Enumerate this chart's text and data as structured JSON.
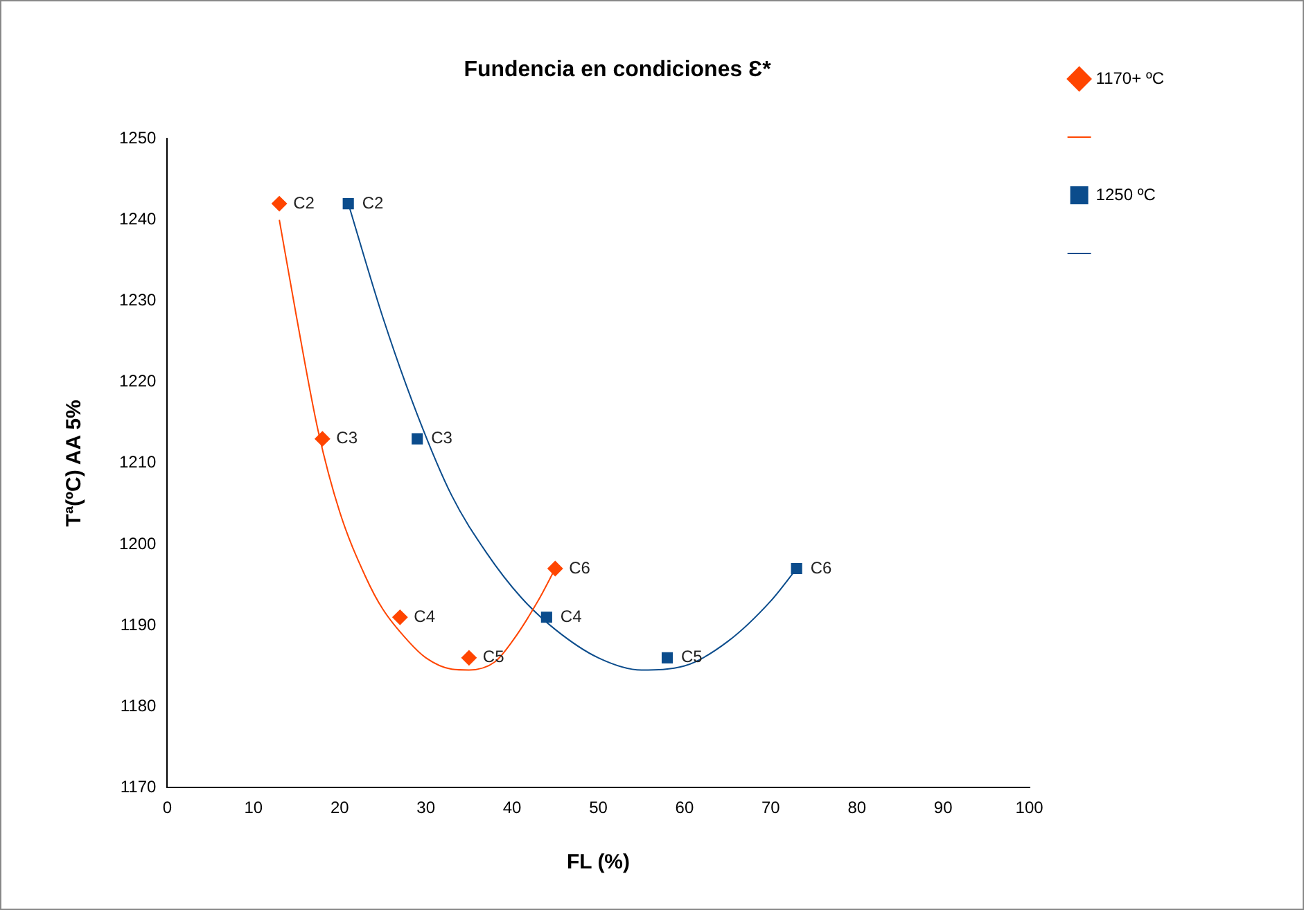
{
  "chart_data": {
    "type": "scatter",
    "title": "Fundencia en condiciones Ɛ*",
    "xlabel": "FL (%)",
    "ylabel": "Tª(ºC) AA 5%",
    "xlim": [
      0,
      100
    ],
    "xticks": [
      0,
      10,
      20,
      30,
      40,
      50,
      60,
      70,
      80,
      90,
      100
    ],
    "ylim": [
      1170,
      1250
    ],
    "yticks": [
      1170,
      1180,
      1190,
      1200,
      1210,
      1220,
      1230,
      1240,
      1250
    ],
    "grid": false,
    "legend": "right",
    "series": [
      {
        "name": "1170+ ºC",
        "color": "#ff4500",
        "marker": "diamond",
        "x": [
          13,
          18,
          27,
          35,
          45
        ],
        "values": [
          1242,
          1213,
          1191,
          1186,
          1197
        ]
      },
      {
        "type": "line",
        "color": "#ff4500",
        "marker": "none",
        "x": [
          13,
          15,
          17.5,
          20,
          23,
          25,
          28,
          30,
          33,
          35,
          38,
          40,
          43,
          45
        ],
        "values": [
          1240,
          1228,
          1214,
          1204,
          1196,
          1192,
          1188,
          1186,
          1184.6,
          1184.5,
          1185.5,
          1188,
          1193,
          1197
        ]
      },
      {
        "name": "1250 ºC",
        "color": "#0b4c8c",
        "marker": "square",
        "x": [
          21,
          29,
          44,
          58,
          73
        ],
        "values": [
          1242,
          1213,
          1191,
          1186,
          1197
        ]
      },
      {
        "type": "line",
        "color": "#0b4c8c",
        "marker": "none",
        "x": [
          21,
          25,
          29,
          33,
          37,
          41,
          45,
          50,
          55,
          60,
          65,
          70,
          73
        ],
        "values": [
          1242,
          1228,
          1216,
          1206,
          1199,
          1193.5,
          1189.5,
          1186,
          1184.5,
          1185,
          1188,
          1193,
          1197
        ]
      }
    ],
    "annotations": [
      {
        "text": "C2",
        "x": 13,
        "y": 1242
      },
      {
        "text": "C3",
        "x": 18,
        "y": 1213
      },
      {
        "text": "C4",
        "x": 27,
        "y": 1191
      },
      {
        "text": "C5",
        "x": 35,
        "y": 1186
      },
      {
        "text": "C6",
        "x": 45,
        "y": 1197
      },
      {
        "text": "C2",
        "x": 21,
        "y": 1242
      },
      {
        "text": "C3",
        "x": 29,
        "y": 1213
      },
      {
        "text": "C4",
        "x": 44,
        "y": 1191
      },
      {
        "text": "C5",
        "x": 58,
        "y": 1186
      },
      {
        "text": "C6",
        "x": 73,
        "y": 1197
      }
    ]
  }
}
